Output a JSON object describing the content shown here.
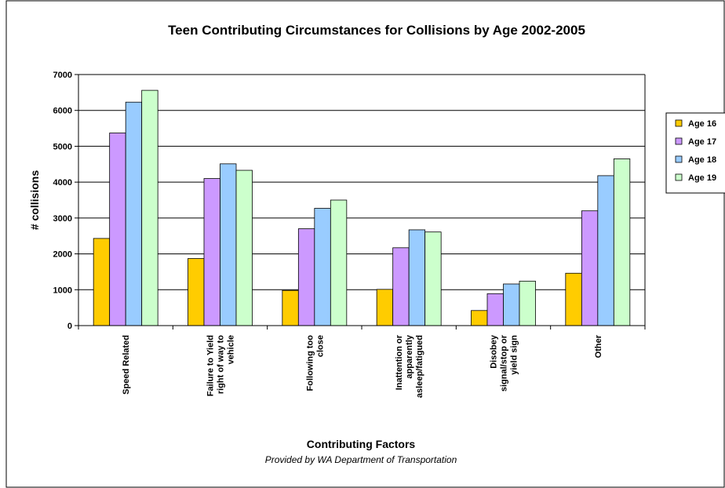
{
  "chart_data": {
    "type": "bar",
    "title": "Teen Contributing Circumstances for Collisions by Age 2002-2005",
    "xlabel": "Contributing Factors",
    "ylabel": "# collisions",
    "credit": "Provided by WA Department of Transportation",
    "ylim": [
      0,
      7000
    ],
    "yticks": [
      "0",
      "1000",
      "2000",
      "3000",
      "4000",
      "5000",
      "6000",
      "7000"
    ],
    "grid": true,
    "legend_position": "right",
    "categories": [
      [
        "Speed Related"
      ],
      [
        "Failure to Yield",
        "right of way to",
        "vehicle"
      ],
      [
        "Following too",
        "close"
      ],
      [
        "Inattention or",
        "apparently",
        "asleep/fatigued"
      ],
      [
        "Disobey",
        "signal/stop or",
        "yield sign"
      ],
      [
        "Other"
      ]
    ],
    "series": [
      {
        "name": "Age 16",
        "color": "#FFCC00",
        "values": [
          2430,
          1870,
          980,
          1010,
          420,
          1460
        ]
      },
      {
        "name": "Age 17",
        "color": "#CC99FF",
        "values": [
          5370,
          4100,
          2700,
          2170,
          890,
          3200
        ]
      },
      {
        "name": "Age 18",
        "color": "#99CCFF",
        "values": [
          6230,
          4510,
          3270,
          2670,
          1160,
          4180
        ]
      },
      {
        "name": "Age 19",
        "color": "#CCFFCC",
        "values": [
          6560,
          4330,
          3500,
          2610,
          1240,
          4650
        ]
      }
    ]
  }
}
